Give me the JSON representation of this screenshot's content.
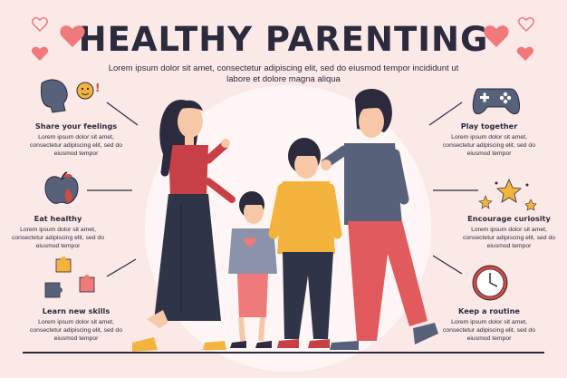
{
  "header": {
    "title": "HEALTHY PARENTING",
    "subtitle": "Lorem ipsum dolor sit amet, consectetur adipiscing elit, sed do eiusmod tempor incididunt ut labore et dolore magna aliqua"
  },
  "items": [
    {
      "label": "Share your feelings",
      "desc": "Lorem ipsum dolor sit amet, consectetur adipiscing elit, sed do eiusmod tempor",
      "icon": "talking-head-icon"
    },
    {
      "label": "Eat healthy",
      "desc": "Lorem ipsum dolor sit amet, consectetur adipiscing elit, sed do eiusmod tempor",
      "icon": "apple-icon"
    },
    {
      "label": "Learn new skills",
      "desc": "Lorem ipsum dolor sit amet, consectetur adipiscing elit, sed do eiusmod tempor",
      "icon": "puzzle-icon"
    },
    {
      "label": "Play together",
      "desc": "Lorem ipsum dolor sit amet, consectetur adipiscing elit, sed do eiusmod tempor",
      "icon": "gamepad-icon"
    },
    {
      "label": "Encourage curiosity",
      "desc": "Lorem ipsum dolor sit amet, consectetur adipiscing elit, sed do eiusmod tempor",
      "icon": "stars-icon"
    },
    {
      "label": "Keep a routine",
      "desc": "Lorem ipsum dolor sit amet, consectetur adipiscing elit, sed do eiusmod tempor",
      "icon": "clock-icon"
    }
  ],
  "colors": {
    "background": "#fbe9e7",
    "heart": "#f0797a",
    "text": "#2c2a3d",
    "yellow": "#f3b33d",
    "blue_grey": "#58617a"
  }
}
